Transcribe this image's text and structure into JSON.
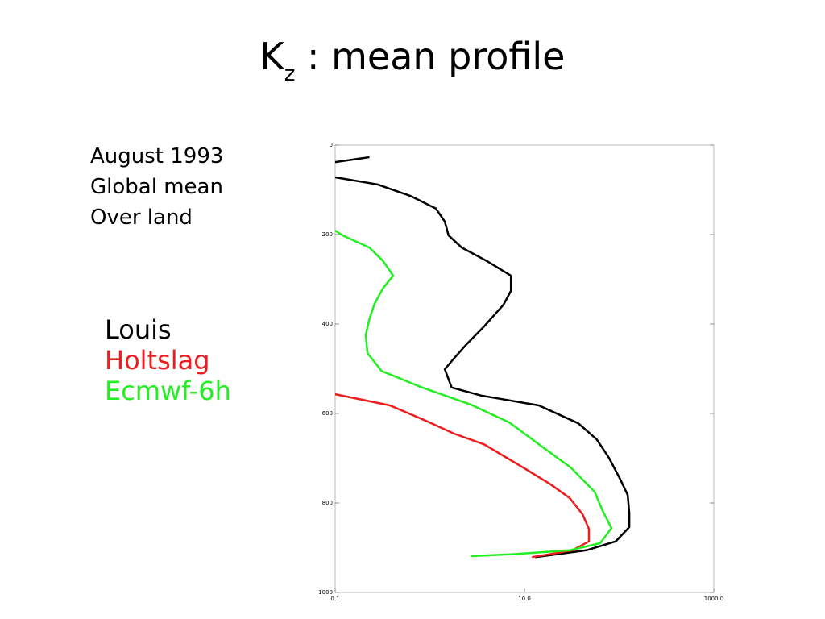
{
  "chart_data": {
    "type": "line",
    "title": {
      "main": "K",
      "subscript": "z",
      "rest": " : mean profile"
    },
    "annotations": [
      "August 1993",
      "Global mean",
      "Over land"
    ],
    "xscale": "log",
    "xlim": [
      0.1,
      1000
    ],
    "xticks": [
      0.1,
      {
        "value": 10,
        "label": "10.0"
      },
      {
        "value": 1000,
        "label": "1000.0"
      }
    ],
    "ylim": [
      1000,
      0
    ],
    "yticks": [
      0,
      200,
      400,
      600,
      800,
      1000
    ],
    "series": [
      {
        "name": "Louis",
        "color": "#000000",
        "x": [
          0.1,
          0.23,
          null,
          0.1,
          0.28,
          0.63,
          1.16,
          1.44,
          1.58,
          2.17,
          3.98,
          7.2,
          7.2,
          6.0,
          3.8,
          2.4,
          1.8,
          1.44,
          1.7,
          3.5,
          14.2,
          37,
          58,
          78,
          101,
          123,
          128,
          128,
          92,
          45,
          13
        ],
        "y": [
          38,
          27,
          null,
          72,
          88,
          114,
          142,
          171,
          202,
          229,
          259,
          292,
          326,
          357,
          404,
          447,
          477,
          501,
          542,
          560,
          582,
          622,
          658,
          699,
          744,
          782,
          823,
          854,
          886,
          906,
          921
        ]
      },
      {
        "name": "Holtslag",
        "color": "#ee1c1c",
        "x": [
          0.1,
          0.38,
          0.86,
          1.8,
          3.75,
          6.6,
          11,
          19,
          30,
          41,
          48,
          48,
          32,
          18,
          12
        ],
        "y": [
          557,
          582,
          614,
          645,
          669,
          700,
          728,
          759,
          789,
          825,
          858,
          886,
          906,
          915,
          921
        ]
      },
      {
        "name": "Ecmwf-6h",
        "color": "#22ee22",
        "x": [
          0.1,
          0.12,
          0.23,
          0.32,
          0.41,
          0.32,
          0.26,
          0.23,
          0.21,
          0.22,
          0.31,
          0.81,
          2.7,
          6.9,
          16,
          31,
          55,
          67,
          83,
          63,
          30,
          8.4,
          2.7
        ],
        "y": [
          191,
          202,
          229,
          259,
          292,
          320,
          355,
          389,
          425,
          465,
          505,
          541,
          580,
          620,
          677,
          721,
          775,
          818,
          856,
          890,
          906,
          914,
          919
        ]
      }
    ]
  }
}
